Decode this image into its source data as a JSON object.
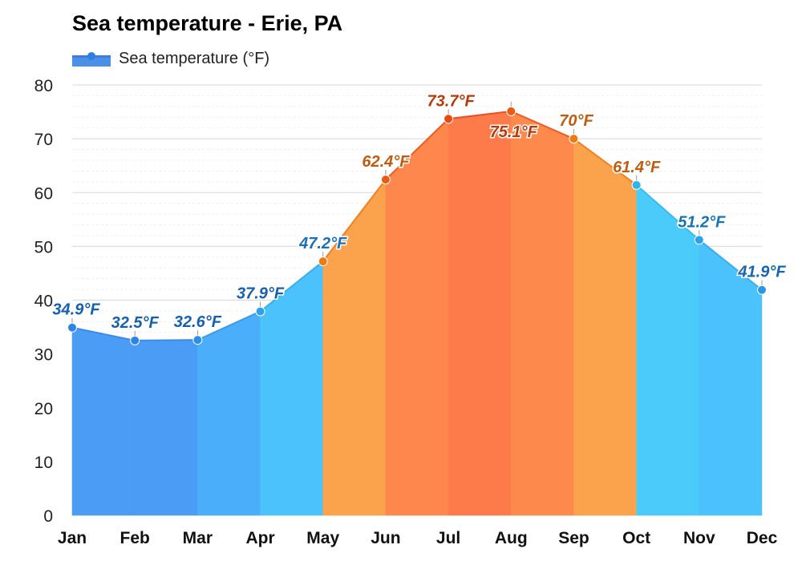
{
  "chart_data": {
    "type": "area",
    "title": "Sea temperature - Erie, PA",
    "legend": {
      "label": "Sea temperature (°F)",
      "position": "top-left"
    },
    "categories": [
      "Jan",
      "Feb",
      "Mar",
      "Apr",
      "May",
      "Jun",
      "Jul",
      "Aug",
      "Sep",
      "Oct",
      "Nov",
      "Dec"
    ],
    "series": [
      {
        "name": "Sea temperature (°F)",
        "values": [
          34.9,
          32.5,
          32.6,
          37.9,
          47.2,
          62.4,
          73.7,
          75.1,
          70,
          61.4,
          51.2,
          41.9
        ],
        "labels": [
          "34.9°F",
          "32.5°F",
          "32.6°F",
          "37.9°F",
          "47.2°F",
          "62.4°F",
          "73.7°F",
          "75.1°F",
          "70°F",
          "61.4°F",
          "51.2°F",
          "41.9°F"
        ]
      }
    ],
    "ylim": [
      0,
      80
    ],
    "yticks": [
      0,
      10,
      20,
      30,
      40,
      50,
      60,
      70,
      80
    ],
    "grid": true,
    "colors": {
      "fill": [
        "#4a9cf5",
        "#4a9cf5",
        "#4aaefa",
        "#4bc2fb",
        "#fba34c",
        "#fd874d",
        "#fd7a4a",
        "#fd8a4c",
        "#fba34c",
        "#4bcbfa",
        "#4bc2fb",
        "#4ab2fa"
      ],
      "line": [
        "#3a8bea",
        "#3a8bea",
        "#3a9be8",
        "#3aaeea",
        "#f08020",
        "#ee5a1f",
        "#e85020",
        "#ee5a1f",
        "#f08020",
        "#3abbf0",
        "#3aaeea",
        "#3a9ee8"
      ],
      "point": [
        "#2b84e6",
        "#2b84e6",
        "#2b8fe6",
        "#2ba3ea",
        "#ee7a17",
        "#ec5a12",
        "#e84a10",
        "#ec5a12",
        "#ee7a17",
        "#2bb4ee",
        "#2ba3ea",
        "#2b95e8"
      ],
      "label": [
        "#1560b0",
        "#1560b0",
        "#1560b0",
        "#1560b0",
        "#1a70b8",
        "#c05c10",
        "#b83a0a",
        "#b83a0a",
        "#c05c10",
        "#c05c10",
        "#1575b0",
        "#1565b0"
      ]
    }
  }
}
